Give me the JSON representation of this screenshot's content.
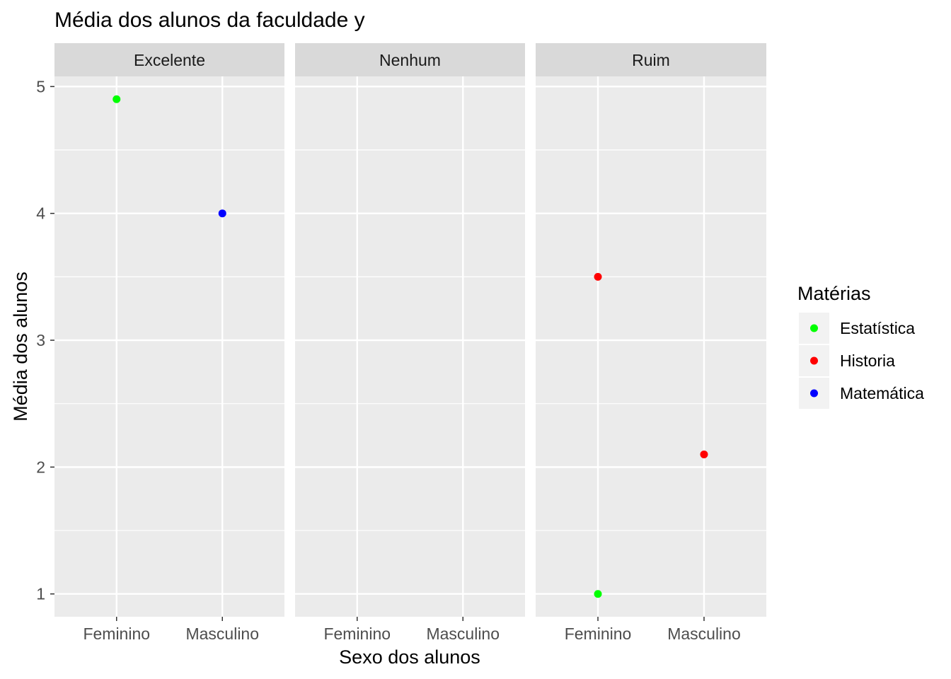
{
  "chart_data": {
    "type": "scatter",
    "title": "Média dos alunos da faculdade y",
    "xlabel": "Sexo dos alunos",
    "ylabel": "Média dos alunos",
    "x_categories": [
      "Feminino",
      "Masculino"
    ],
    "y_ticks": [
      1,
      2,
      3,
      4,
      5
    ],
    "ylim": [
      0.82,
      5.08
    ],
    "grid": true,
    "facets": [
      "Excelente",
      "Nenhum",
      "Ruim"
    ],
    "legend": {
      "title": "Matérias",
      "position": "right",
      "entries": [
        {
          "name": "Estatística",
          "color": "#00ff00"
        },
        {
          "name": "Historia",
          "color": "#ff0000"
        },
        {
          "name": "Matemática",
          "color": "#0000ff"
        }
      ]
    },
    "points": [
      {
        "facet": "Excelente",
        "x": "Feminino",
        "y": 4.9,
        "series": "Estatística"
      },
      {
        "facet": "Excelente",
        "x": "Masculino",
        "y": 4.0,
        "series": "Matemática"
      },
      {
        "facet": "Ruim",
        "x": "Feminino",
        "y": 3.5,
        "series": "Historia"
      },
      {
        "facet": "Ruim",
        "x": "Feminino",
        "y": 1.0,
        "series": "Estatística"
      },
      {
        "facet": "Ruim",
        "x": "Masculino",
        "y": 2.1,
        "series": "Historia"
      }
    ]
  }
}
